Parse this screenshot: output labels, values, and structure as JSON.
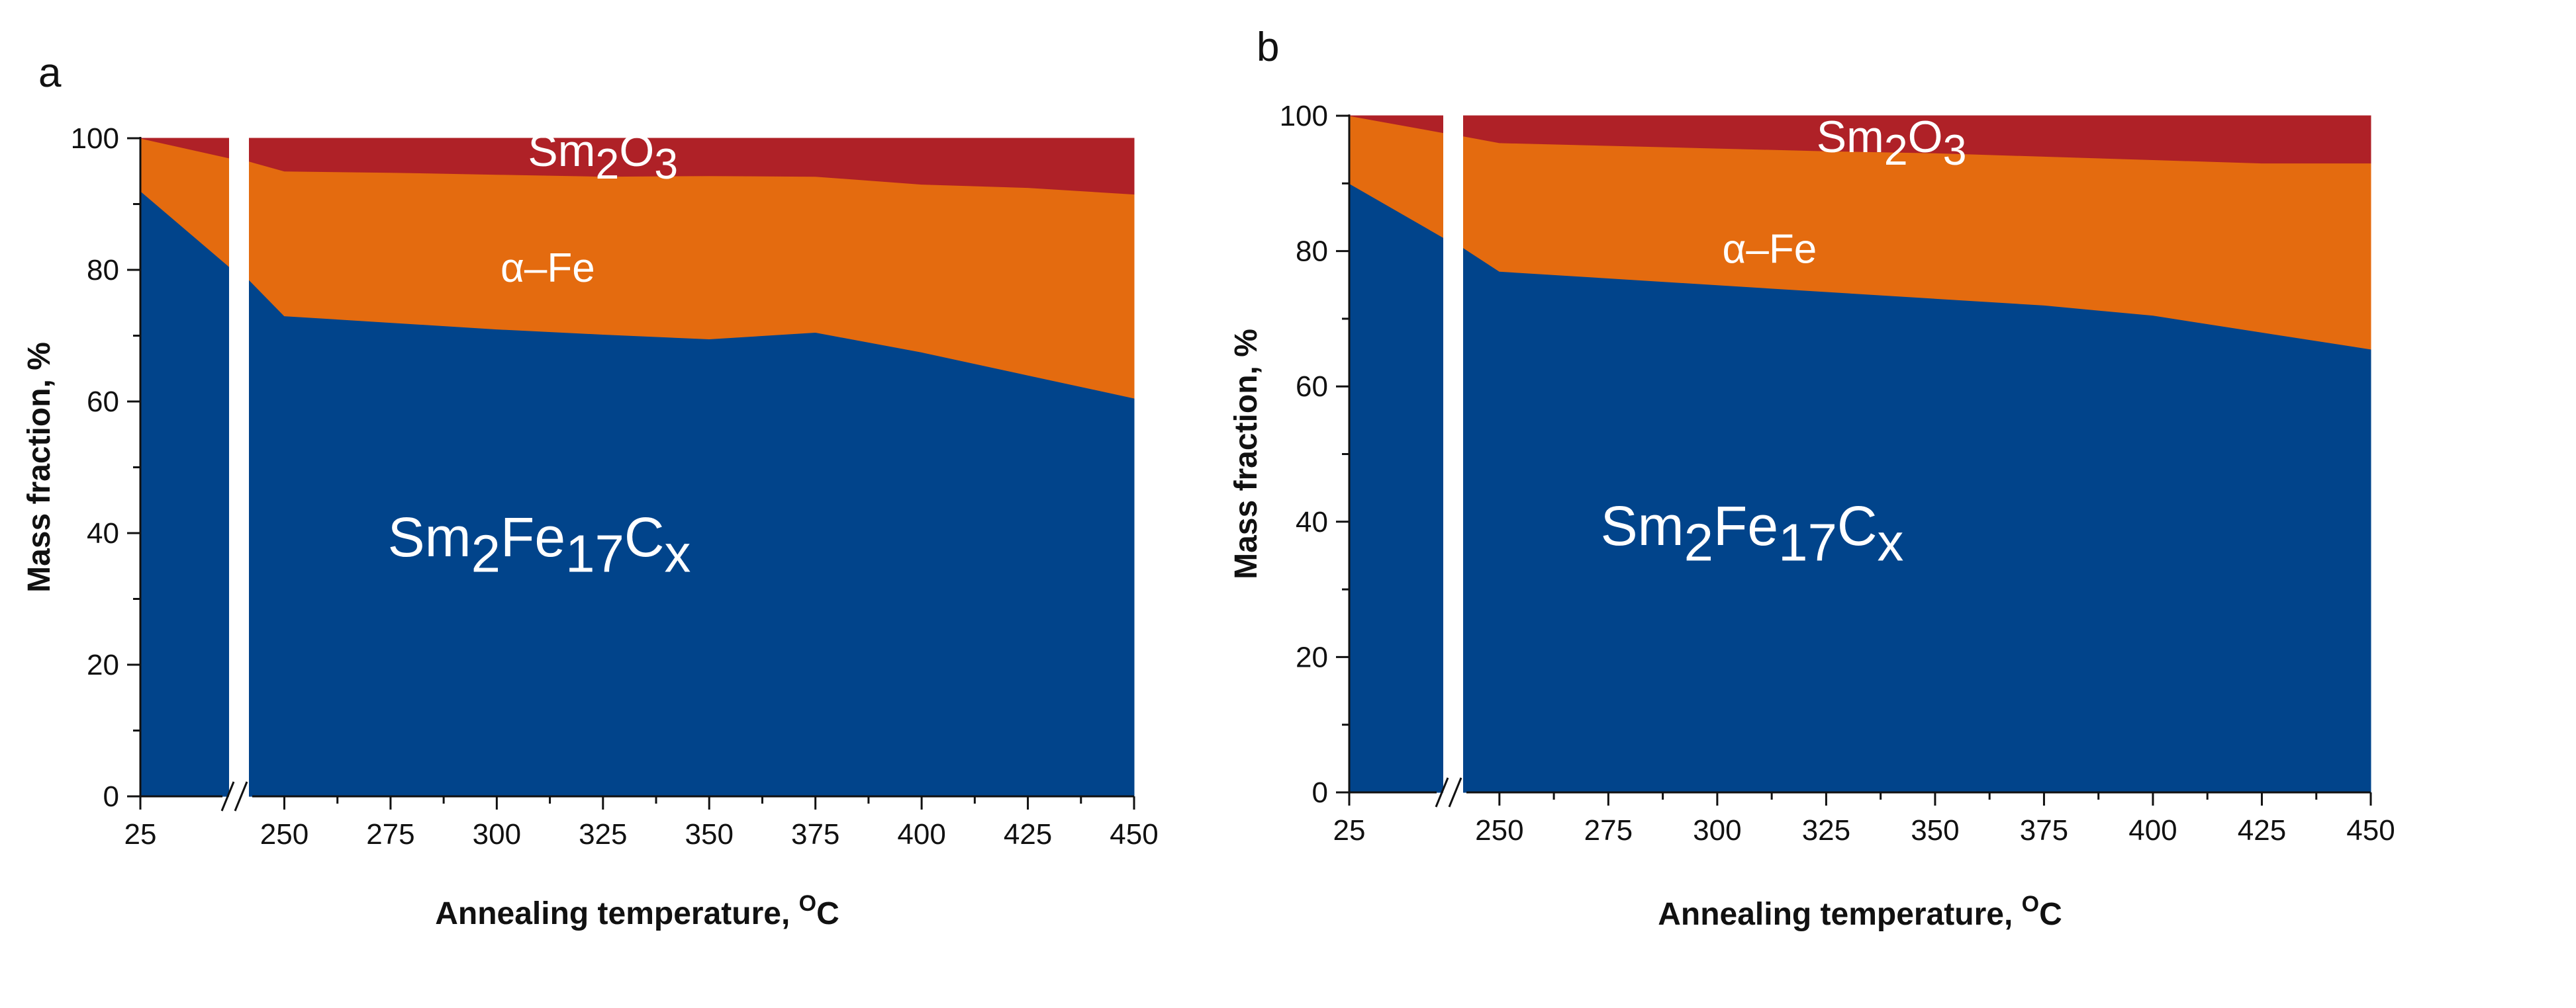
{
  "figure": {
    "colors": {
      "Sm2Fe17Cx": "#01448B",
      "alpha_Fe": "#E46B0F",
      "Sm2O3": "#AF2127"
    }
  },
  "chart_data": [
    {
      "panel": "a",
      "type": "area",
      "stacked": true,
      "xlabel": "Annealing temperature, ",
      "xlabel_sup": "O",
      "xlabel_suffix": "C",
      "ylabel": "Mass fraction, %",
      "ylim": [
        0,
        100
      ],
      "yticks": [
        0,
        20,
        40,
        60,
        80,
        100
      ],
      "axis_break": true,
      "segments": [
        {
          "x": [
            25,
            60
          ],
          "xticks": [
            25
          ],
          "series": [
            {
              "name": "Sm2Fe17Cx",
              "values": [
                92,
                80.5
              ]
            },
            {
              "name": "α–Fe",
              "values": [
                8,
                16.5
              ]
            },
            {
              "name": "Sm2O3",
              "values": [
                0,
                3
              ]
            }
          ]
        },
        {
          "x": [
            240,
            250,
            275,
            300,
            325,
            350,
            375,
            400,
            425,
            450
          ],
          "xticks": [
            250,
            275,
            300,
            325,
            350,
            375,
            400,
            425,
            450
          ],
          "series": [
            {
              "name": "Sm2Fe17Cx",
              "values": [
                78.5,
                73,
                72,
                71,
                70.2,
                69.5,
                70.5,
                67.5,
                64,
                60.5
              ]
            },
            {
              "name": "α–Fe",
              "values": [
                18,
                22,
                22.8,
                23.5,
                24,
                24.8,
                23.7,
                25.5,
                28.5,
                31
              ]
            },
            {
              "name": "Sm2O3",
              "values": [
                3.5,
                5,
                5.2,
                5.5,
                5.8,
                5.7,
                5.8,
                7,
                7.5,
                8.5
              ]
            }
          ]
        }
      ],
      "annotations": [
        {
          "base": "Sm",
          "sub": "2",
          "base2": "O",
          "sub2": "3",
          "x": 325,
          "y": 97.2
        },
        {
          "text": "α–Fe",
          "x": 312,
          "y": 80
        },
        {
          "base": "Sm",
          "sub": "2",
          "base2": "Fe",
          "sub2": "17",
          "base3": "C",
          "sub3": "x",
          "x": 310,
          "y": 38.5
        }
      ]
    },
    {
      "panel": "b",
      "type": "area",
      "stacked": true,
      "xlabel": "Annealing temperature, ",
      "xlabel_sup": "O",
      "xlabel_suffix": "C",
      "ylabel": "Mass fraction, %",
      "ylim": [
        0,
        100
      ],
      "yticks": [
        0,
        20,
        40,
        60,
        80,
        100
      ],
      "axis_break": true,
      "segments": [
        {
          "x": [
            25,
            60
          ],
          "xticks": [
            25
          ],
          "series": [
            {
              "name": "Sm2Fe17Cx",
              "values": [
                90,
                82
              ]
            },
            {
              "name": "α–Fe",
              "values": [
                10,
                15.5
              ]
            },
            {
              "name": "Sm2O3",
              "values": [
                0,
                2.5
              ]
            }
          ]
        },
        {
          "x": [
            240,
            250,
            275,
            300,
            325,
            350,
            375,
            400,
            425,
            450
          ],
          "xticks": [
            250,
            275,
            300,
            325,
            350,
            375,
            400,
            425,
            450
          ],
          "series": [
            {
              "name": "Sm2Fe17Cx",
              "values": [
                80.5,
                77,
                76,
                75,
                74,
                73,
                72,
                70.5,
                68,
                65.5
              ]
            },
            {
              "name": "α–Fe",
              "values": [
                16.5,
                19,
                19.6,
                20.2,
                20.8,
                21.5,
                22,
                23,
                25,
                27.5
              ]
            },
            {
              "name": "Sm2O3",
              "values": [
                3,
                4,
                4.4,
                4.8,
                5.2,
                5.5,
                6,
                6.5,
                7,
                7
              ]
            }
          ]
        }
      ],
      "annotations": [
        {
          "base": "Sm",
          "sub": "2",
          "base2": "O",
          "sub2": "3",
          "x": 340,
          "y": 96
        },
        {
          "text": "α–Fe",
          "x": 312,
          "y": 80
        },
        {
          "base": "Sm",
          "sub": "2",
          "base2": "Fe",
          "sub2": "17",
          "base3": "C",
          "sub3": "x",
          "x": 308,
          "y": 38.5
        }
      ]
    }
  ]
}
